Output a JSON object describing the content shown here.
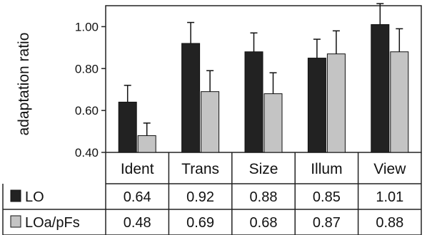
{
  "chart_data": {
    "type": "bar",
    "ylabel": "adaptation ratio",
    "ylim": [
      0.4,
      1.1
    ],
    "yticks": [
      "0.40",
      "0.60",
      "0.80",
      "1.00"
    ],
    "grid": false,
    "legend": "data-table-rows",
    "categories": [
      "Ident",
      "Trans",
      "Size",
      "Illum",
      "View"
    ],
    "series": [
      {
        "name": "LO",
        "values": [
          0.64,
          0.92,
          0.88,
          0.85,
          1.01
        ],
        "labels": [
          "0.64",
          "0.92",
          "0.88",
          "0.85",
          "1.01"
        ],
        "error": [
          0.08,
          0.1,
          0.09,
          0.09,
          0.1
        ],
        "color": "#222222"
      },
      {
        "name": "LOa/pFs",
        "values": [
          0.48,
          0.69,
          0.68,
          0.87,
          0.88
        ],
        "labels": [
          "0.48",
          "0.69",
          "0.68",
          "0.87",
          "0.88"
        ],
        "error": [
          0.06,
          0.1,
          0.1,
          0.11,
          0.11
        ],
        "color": "#c4c4c4"
      }
    ]
  }
}
